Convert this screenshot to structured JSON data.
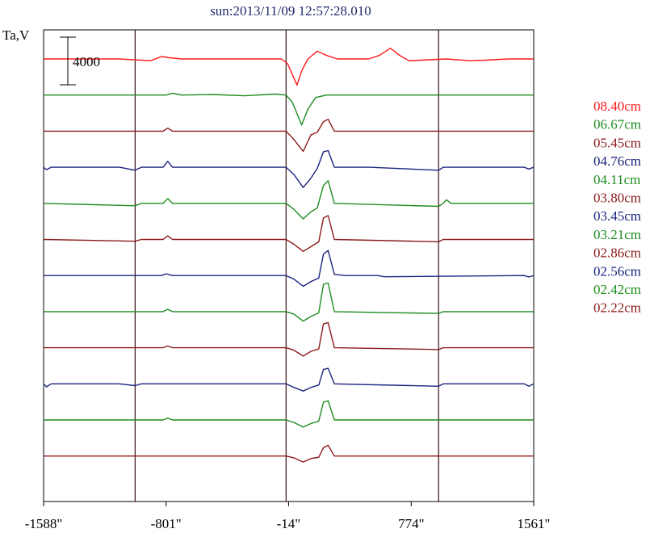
{
  "chart_data": {
    "type": "line",
    "title": "sun:2013/11/09 12:57:28.010",
    "ylabel": "Ta,V",
    "xlabel": "",
    "xlim": [
      -1588,
      1561
    ],
    "x_tick_labels": [
      "-1588\"",
      "-801\"",
      "-14\"",
      "774\"",
      "1561\""
    ],
    "x_ticks": [
      -1588,
      -801,
      -14,
      774,
      1561
    ],
    "vertical_markers": [
      -1000,
      -30,
      950
    ],
    "scale_bar": {
      "label": "4000",
      "value": 4000
    },
    "grid": false,
    "legend_position": "right",
    "series": [
      {
        "name": "08.40cm",
        "color": "#ff1a1a",
        "points": [
          [
            -1588,
            0
          ],
          [
            -1100,
            0
          ],
          [
            -900,
            -150
          ],
          [
            -830,
            200
          ],
          [
            -780,
            100
          ],
          [
            -700,
            0
          ],
          [
            -60,
            0
          ],
          [
            -20,
            -400
          ],
          [
            40,
            -2200
          ],
          [
            70,
            -1000
          ],
          [
            110,
            0
          ],
          [
            170,
            650
          ],
          [
            230,
            300
          ],
          [
            300,
            0
          ],
          [
            500,
            0
          ],
          [
            570,
            300
          ],
          [
            640,
            900
          ],
          [
            700,
            300
          ],
          [
            760,
            -150
          ],
          [
            1000,
            0
          ],
          [
            1150,
            -150
          ],
          [
            1250,
            -100
          ],
          [
            1400,
            0
          ],
          [
            1561,
            0
          ]
        ]
      },
      {
        "name": "06.67cm",
        "color": "#1e8c1e",
        "points": [
          [
            -1588,
            0
          ],
          [
            -800,
            0
          ],
          [
            -760,
            150
          ],
          [
            -700,
            0
          ],
          [
            -500,
            50
          ],
          [
            -300,
            -60
          ],
          [
            -100,
            80
          ],
          [
            -30,
            0
          ],
          [
            10,
            -600
          ],
          [
            70,
            -2500
          ],
          [
            110,
            -1200
          ],
          [
            160,
            -200
          ],
          [
            230,
            0
          ],
          [
            450,
            0
          ],
          [
            700,
            0
          ],
          [
            1561,
            0
          ]
        ]
      },
      {
        "name": "05.45cm",
        "color": "#8b1a1a",
        "points": [
          [
            -1588,
            0
          ],
          [
            -820,
            0
          ],
          [
            -790,
            250
          ],
          [
            -760,
            0
          ],
          [
            -30,
            0
          ],
          [
            20,
            -700
          ],
          [
            80,
            -1700
          ],
          [
            130,
            -300
          ],
          [
            170,
            -100
          ],
          [
            210,
            800
          ],
          [
            240,
            1000
          ],
          [
            280,
            0
          ],
          [
            500,
            0
          ],
          [
            1561,
            0
          ]
        ]
      },
      {
        "name": "04.76cm",
        "color": "#1a237e",
        "points": [
          [
            -1588,
            0
          ],
          [
            -1570,
            -200
          ],
          [
            -1540,
            0
          ],
          [
            -1100,
            0
          ],
          [
            -1000,
            -250
          ],
          [
            -960,
            0
          ],
          [
            -820,
            0
          ],
          [
            -790,
            500
          ],
          [
            -760,
            0
          ],
          [
            -30,
            0
          ],
          [
            20,
            -600
          ],
          [
            80,
            -1700
          ],
          [
            130,
            -900
          ],
          [
            170,
            -100
          ],
          [
            210,
            1300
          ],
          [
            240,
            1400
          ],
          [
            280,
            0
          ],
          [
            500,
            0
          ],
          [
            950,
            -250
          ],
          [
            980,
            0
          ],
          [
            1500,
            0
          ],
          [
            1530,
            -150
          ],
          [
            1561,
            0
          ]
        ]
      },
      {
        "name": "04.11cm",
        "color": "#1e8c1e",
        "points": [
          [
            -1588,
            0
          ],
          [
            -1000,
            -200
          ],
          [
            -960,
            0
          ],
          [
            -820,
            0
          ],
          [
            -790,
            400
          ],
          [
            -760,
            0
          ],
          [
            -30,
            0
          ],
          [
            20,
            -500
          ],
          [
            80,
            -1300
          ],
          [
            130,
            -700
          ],
          [
            170,
            -400
          ],
          [
            210,
            1500
          ],
          [
            240,
            1900
          ],
          [
            280,
            0
          ],
          [
            950,
            -250
          ],
          [
            980,
            0
          ],
          [
            1000,
            300
          ],
          [
            1030,
            0
          ],
          [
            1561,
            0
          ]
        ]
      },
      {
        "name": "03.80cm",
        "color": "#8b1a1a",
        "points": [
          [
            -1588,
            0
          ],
          [
            -1000,
            -150
          ],
          [
            -960,
            0
          ],
          [
            -820,
            0
          ],
          [
            -790,
            300
          ],
          [
            -760,
            0
          ],
          [
            -30,
            0
          ],
          [
            20,
            -400
          ],
          [
            80,
            -1000
          ],
          [
            130,
            -600
          ],
          [
            180,
            -200
          ],
          [
            210,
            1800
          ],
          [
            240,
            2000
          ],
          [
            280,
            0
          ],
          [
            950,
            -200
          ],
          [
            980,
            0
          ],
          [
            1561,
            0
          ]
        ]
      },
      {
        "name": "03.45cm",
        "color": "#1a237e",
        "points": [
          [
            -1588,
            0
          ],
          [
            -830,
            0
          ],
          [
            -800,
            150
          ],
          [
            -760,
            0
          ],
          [
            -30,
            0
          ],
          [
            20,
            -300
          ],
          [
            80,
            -900
          ],
          [
            130,
            -500
          ],
          [
            180,
            -200
          ],
          [
            210,
            1800
          ],
          [
            240,
            2100
          ],
          [
            280,
            100
          ],
          [
            350,
            0
          ],
          [
            560,
            0
          ],
          [
            600,
            -100
          ],
          [
            1500,
            0
          ],
          [
            1530,
            -120
          ],
          [
            1561,
            0
          ]
        ]
      },
      {
        "name": "03.21cm",
        "color": "#1e8c1e",
        "points": [
          [
            -1588,
            0
          ],
          [
            -820,
            0
          ],
          [
            -790,
            200
          ],
          [
            -760,
            0
          ],
          [
            -30,
            0
          ],
          [
            20,
            -200
          ],
          [
            80,
            -800
          ],
          [
            130,
            -400
          ],
          [
            180,
            -100
          ],
          [
            210,
            2300
          ],
          [
            240,
            2400
          ],
          [
            280,
            0
          ],
          [
            950,
            -150
          ],
          [
            980,
            0
          ],
          [
            1561,
            0
          ]
        ]
      },
      {
        "name": "02.86cm",
        "color": "#8b1a1a",
        "points": [
          [
            -1588,
            0
          ],
          [
            -820,
            0
          ],
          [
            -790,
            150
          ],
          [
            -760,
            0
          ],
          [
            -30,
            0
          ],
          [
            20,
            -200
          ],
          [
            80,
            -700
          ],
          [
            130,
            -300
          ],
          [
            180,
            -100
          ],
          [
            210,
            2000
          ],
          [
            240,
            2100
          ],
          [
            280,
            0
          ],
          [
            950,
            -150
          ],
          [
            980,
            0
          ],
          [
            1561,
            0
          ]
        ]
      },
      {
        "name": "02.56cm",
        "color": "#1a237e",
        "points": [
          [
            -1588,
            0
          ],
          [
            -1570,
            -250
          ],
          [
            -1540,
            0
          ],
          [
            -1100,
            0
          ],
          [
            -1000,
            -150
          ],
          [
            -960,
            0
          ],
          [
            -30,
            0
          ],
          [
            20,
            -300
          ],
          [
            80,
            -600
          ],
          [
            130,
            -300
          ],
          [
            180,
            -100
          ],
          [
            210,
            1200
          ],
          [
            240,
            1300
          ],
          [
            280,
            0
          ],
          [
            950,
            -200
          ],
          [
            980,
            0
          ],
          [
            1500,
            0
          ],
          [
            1530,
            -200
          ],
          [
            1561,
            0
          ]
        ]
      },
      {
        "name": "02.42cm",
        "color": "#1e8c1e",
        "points": [
          [
            -1588,
            0
          ],
          [
            -820,
            0
          ],
          [
            -790,
            150
          ],
          [
            -760,
            0
          ],
          [
            -30,
            0
          ],
          [
            20,
            -200
          ],
          [
            80,
            -600
          ],
          [
            130,
            -300
          ],
          [
            180,
            -100
          ],
          [
            210,
            1500
          ],
          [
            240,
            1600
          ],
          [
            280,
            0
          ],
          [
            1561,
            0
          ]
        ]
      },
      {
        "name": "02.22cm",
        "color": "#8b1a1a",
        "points": [
          [
            -1588,
            0
          ],
          [
            -30,
            0
          ],
          [
            20,
            -150
          ],
          [
            80,
            -500
          ],
          [
            130,
            -200
          ],
          [
            180,
            -100
          ],
          [
            210,
            700
          ],
          [
            240,
            900
          ],
          [
            280,
            0
          ],
          [
            1561,
            0
          ]
        ]
      }
    ]
  }
}
